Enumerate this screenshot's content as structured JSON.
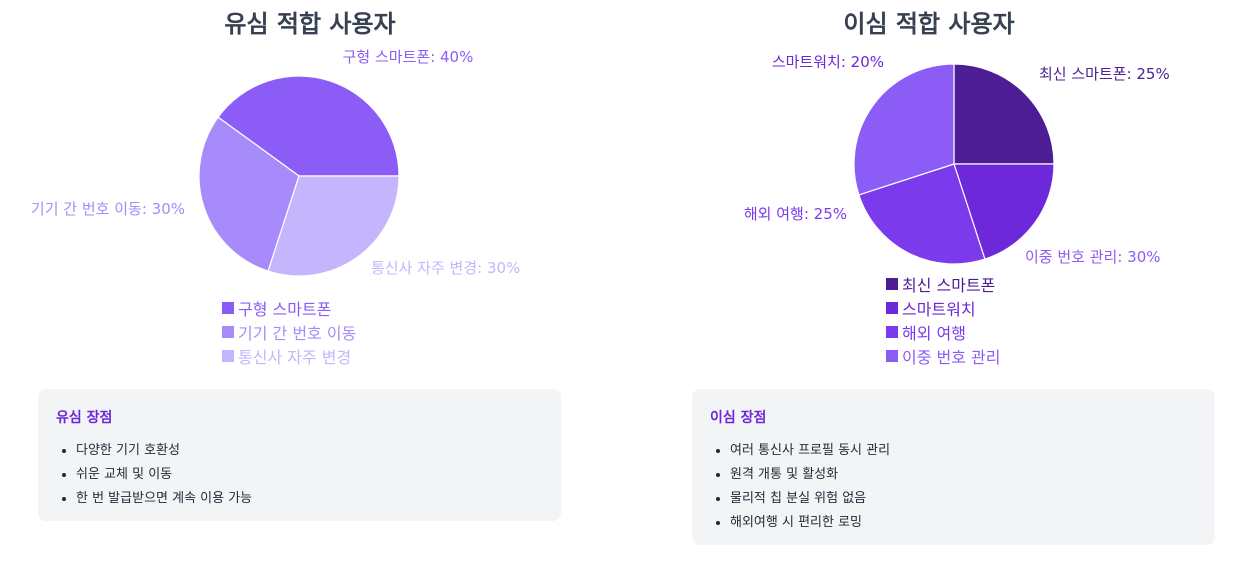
{
  "chart_data": [
    {
      "type": "pie",
      "title": "유심 적합 사용자",
      "categories": [
        "구형 스마트폰",
        "기기 간 번호 이동",
        "통신사 자주 변경"
      ],
      "values": [
        40,
        30,
        30
      ],
      "slice_labels": [
        "구형 스마트폰: 40%",
        "기기 간 번호 이동: 30%",
        "통신사 자주 변경: 30%"
      ],
      "colors": [
        "#8b5cf6",
        "#a78bfa",
        "#c4b5fd"
      ],
      "legend": "bottom"
    },
    {
      "type": "pie",
      "title": "이심 적합 사용자",
      "categories": [
        "최신 스마트폰",
        "스마트워치",
        "해외 여행",
        "이중 번호 관리"
      ],
      "values": [
        25,
        20,
        25,
        30
      ],
      "slice_labels": [
        "최신 스마트폰: 25%",
        "스마트워치: 20%",
        "해외 여행: 25%",
        "이중 번호 관리: 30%"
      ],
      "colors": [
        "#4c1d95",
        "#6d28d9",
        "#7c3aed",
        "#8b5cf6"
      ],
      "legend": "bottom"
    }
  ],
  "cards": [
    {
      "title": "유심 장점",
      "items": [
        "다양한 기기 호환성",
        "쉬운 교체 및 이동",
        "한 번 발급받으면 계속 이용 가능"
      ]
    },
    {
      "title": "이심 장점",
      "items": [
        "여러 통신사 프로필 동시 관리",
        "원격 개통 및 활성화",
        "물리적 칩 분실 위험 없음",
        "해외여행 시 편리한 로밍"
      ]
    }
  ]
}
